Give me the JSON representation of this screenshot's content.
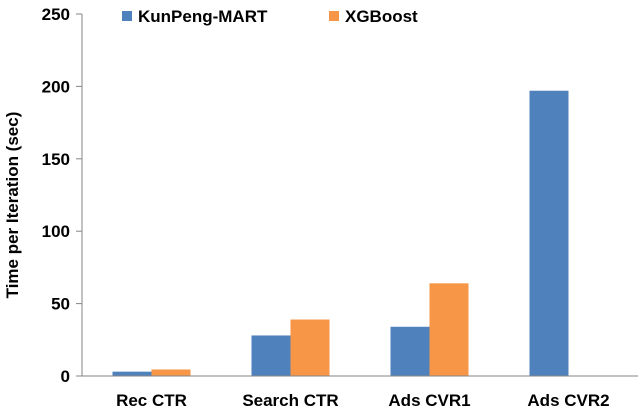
{
  "chart_data": {
    "type": "bar",
    "title": "",
    "xlabel": "",
    "ylabel": "Time per Iteration (sec)",
    "ylim": [
      0,
      250
    ],
    "yticks": [
      0,
      50,
      100,
      150,
      200,
      250
    ],
    "grid": false,
    "legend_position": "top",
    "categories": [
      "Rec CTR",
      "Search CTR",
      "Ads CVR1",
      "Ads CVR2"
    ],
    "series": [
      {
        "name": "KunPeng-MART",
        "color": "#4f81bd",
        "values": [
          3,
          28,
          34,
          197
        ]
      },
      {
        "name": "XGBoost",
        "color": "#f79646",
        "values": [
          4.5,
          39,
          64,
          null
        ]
      }
    ]
  }
}
